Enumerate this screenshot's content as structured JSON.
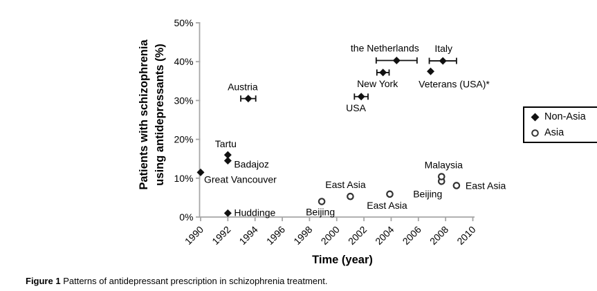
{
  "figure": {
    "caption_prefix": "Figure 1",
    "caption_text": " Patterns of antidepressant prescription in schizophrenia treatment."
  },
  "colors": {
    "background": "#ffffff",
    "axis_line": "#a6a6a6",
    "marker_fill": "#111111",
    "circle_stroke": "#333333",
    "text": "#000000"
  },
  "legend": {
    "items": [
      {
        "label": "Non-Asia",
        "marker": "filled-diamond"
      },
      {
        "label": "Asia",
        "marker": "open-circle"
      }
    ]
  },
  "chart_data": {
    "type": "scatter",
    "title": "",
    "xlabel": "Time (year)",
    "ylabel": "Patients with schizophrenia using antidepressants (%)",
    "ylabel_line1": "Patients with schizophrenia",
    "ylabel_line2": "using antidepressants (%)",
    "xlim": [
      1990,
      2010
    ],
    "ylim": [
      0,
      50
    ],
    "x_ticks": [
      1990,
      1992,
      1994,
      1996,
      1998,
      2000,
      2002,
      2004,
      2006,
      2008,
      2010
    ],
    "y_ticks": [
      0,
      10,
      20,
      30,
      40,
      50
    ],
    "y_tick_suffix": "%",
    "grid": false,
    "legend_position": "right",
    "series": [
      {
        "name": "Non-Asia",
        "marker": "filled-diamond",
        "points": [
          {
            "label": "Great Vancouver",
            "x": 1990,
            "y": 11.5,
            "label_anchor": "start",
            "label_dx": 5,
            "label_dy": 15
          },
          {
            "label": "Tartu",
            "x": 1992,
            "y": 16,
            "label_anchor": "middle",
            "label_dx": -3,
            "label_dy": -11
          },
          {
            "label": "Badajoz",
            "x": 1992,
            "y": 14.5,
            "label_anchor": "start",
            "label_dx": 9,
            "label_dy": 10
          },
          {
            "label": "Huddinge",
            "x": 1992,
            "y": 1,
            "label_anchor": "start",
            "label_dx": 9,
            "label_dy": 4
          },
          {
            "label": "Austria",
            "x": 1993.5,
            "y": 30.5,
            "xerr": 0.55,
            "label_anchor": "middle",
            "label_dx": -8,
            "label_dy": -12
          },
          {
            "label": "USA",
            "x": 2001.8,
            "y": 31,
            "xerr": 0.5,
            "label_anchor": "start",
            "label_dx": -22,
            "label_dy": 21
          },
          {
            "label": "New York",
            "x": 2003.4,
            "y": 37.2,
            "xerr": 0.45,
            "label_anchor": "middle",
            "label_dx": -8,
            "label_dy": 21
          },
          {
            "label": "the Netherlands",
            "x": 2004.4,
            "y": 40.3,
            "xerr": 1.5,
            "label_anchor": "middle",
            "label_dx": -17,
            "label_dy": -13
          },
          {
            "label": "Italy",
            "x": 2007.8,
            "y": 40.2,
            "xerr": 1.0,
            "label_anchor": "middle",
            "label_dx": 1,
            "label_dy": -13
          },
          {
            "label": "Veterans (USA)*",
            "x": 2006.9,
            "y": 37.5,
            "label_anchor": "middle",
            "label_dx": 34,
            "label_dy": 23
          }
        ]
      },
      {
        "name": "Asia",
        "marker": "open-circle",
        "points": [
          {
            "label": "Beijing",
            "x": 1998.9,
            "y": 4,
            "label_anchor": "middle",
            "label_dx": -2,
            "label_dy": 20
          },
          {
            "label": "East Asia",
            "x": 2001,
            "y": 5.3,
            "label_anchor": "middle",
            "label_dx": -7,
            "label_dy": -12
          },
          {
            "label": "East Asia",
            "x": 2003.9,
            "y": 5.9,
            "label_anchor": "middle",
            "label_dx": -4,
            "label_dy": 21
          },
          {
            "label": "Beijing",
            "x": 2007.7,
            "y": 9.2,
            "label_anchor": "middle",
            "label_dx": -20,
            "label_dy": 23
          },
          {
            "label": "Malaysia",
            "x": 2007.7,
            "y": 10.4,
            "label_anchor": "middle",
            "label_dx": 3,
            "label_dy": -12
          },
          {
            "label": "East Asia",
            "x": 2008.8,
            "y": 8.1,
            "label_anchor": "start",
            "label_dx": 13,
            "label_dy": 5
          }
        ]
      }
    ]
  }
}
